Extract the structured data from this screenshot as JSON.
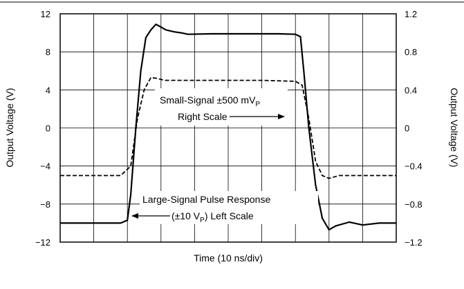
{
  "chart_data": {
    "type": "line",
    "title": "",
    "xlabel": "Time (10 ns/div)",
    "ylabel_left": "Output Voltage (V)",
    "ylabel_right": "Output Voltage (V)",
    "x_divisions": 10,
    "ylim_left": [
      -12,
      12
    ],
    "ylim_right": [
      -1.2,
      1.2
    ],
    "yticks_left": [
      "12",
      "8",
      "4",
      "0",
      "−4",
      "−8",
      "−12"
    ],
    "yticks_right": [
      "1.2",
      "0.8",
      "0.4",
      "0",
      "−0.4",
      "−0.8",
      "−1.2"
    ],
    "grid": true,
    "series": [
      {
        "name": "Large-Signal Pulse Response (±10 VP) Left Scale",
        "axis": "left",
        "style": "solid",
        "points": [
          [
            0,
            -10
          ],
          [
            1,
            -10
          ],
          [
            1.8,
            -10
          ],
          [
            2.0,
            -9.7
          ],
          [
            2.1,
            -7
          ],
          [
            2.25,
            0
          ],
          [
            2.4,
            6
          ],
          [
            2.55,
            9.5
          ],
          [
            2.7,
            10.3
          ],
          [
            2.85,
            10.9
          ],
          [
            2.95,
            10.7
          ],
          [
            3.15,
            10.3
          ],
          [
            3.4,
            10.1
          ],
          [
            3.6,
            10.0
          ],
          [
            3.8,
            9.85
          ],
          [
            4.5,
            9.9
          ],
          [
            5.5,
            9.9
          ],
          [
            6.5,
            9.9
          ],
          [
            7.0,
            9.85
          ],
          [
            7.15,
            9.6
          ],
          [
            7.25,
            6
          ],
          [
            7.4,
            0
          ],
          [
            7.6,
            -6
          ],
          [
            7.8,
            -9.5
          ],
          [
            8.0,
            -10.7
          ],
          [
            8.2,
            -10.3
          ],
          [
            8.6,
            -9.9
          ],
          [
            9.0,
            -10.2
          ],
          [
            9.5,
            -10.0
          ],
          [
            10,
            -10.0
          ]
        ]
      },
      {
        "name": "Small-Signal ±500 mVP Right Scale",
        "axis": "right",
        "style": "dashed",
        "points": [
          [
            0,
            -0.5
          ],
          [
            1.0,
            -0.5
          ],
          [
            1.8,
            -0.5
          ],
          [
            2.1,
            -0.4
          ],
          [
            2.3,
            0.1
          ],
          [
            2.5,
            0.4
          ],
          [
            2.7,
            0.53
          ],
          [
            2.9,
            0.52
          ],
          [
            3.1,
            0.5
          ],
          [
            4,
            0.5
          ],
          [
            5,
            0.5
          ],
          [
            6,
            0.5
          ],
          [
            7.0,
            0.49
          ],
          [
            7.2,
            0.45
          ],
          [
            7.4,
            0.1
          ],
          [
            7.6,
            -0.35
          ],
          [
            7.8,
            -0.5
          ],
          [
            8.0,
            -0.53
          ],
          [
            8.3,
            -0.5
          ],
          [
            9,
            -0.5
          ],
          [
            10,
            -0.5
          ]
        ]
      }
    ],
    "annotations": {
      "small_signal_line1": "Small-Signal ±500 mV",
      "small_signal_sub": "P",
      "small_signal_line2": "Right Scale",
      "large_signal_line1": "Large-Signal Pulse Response",
      "large_signal_line2a": "(±10 V",
      "large_signal_sub": "P",
      "large_signal_line2b": ") Left Scale"
    }
  }
}
